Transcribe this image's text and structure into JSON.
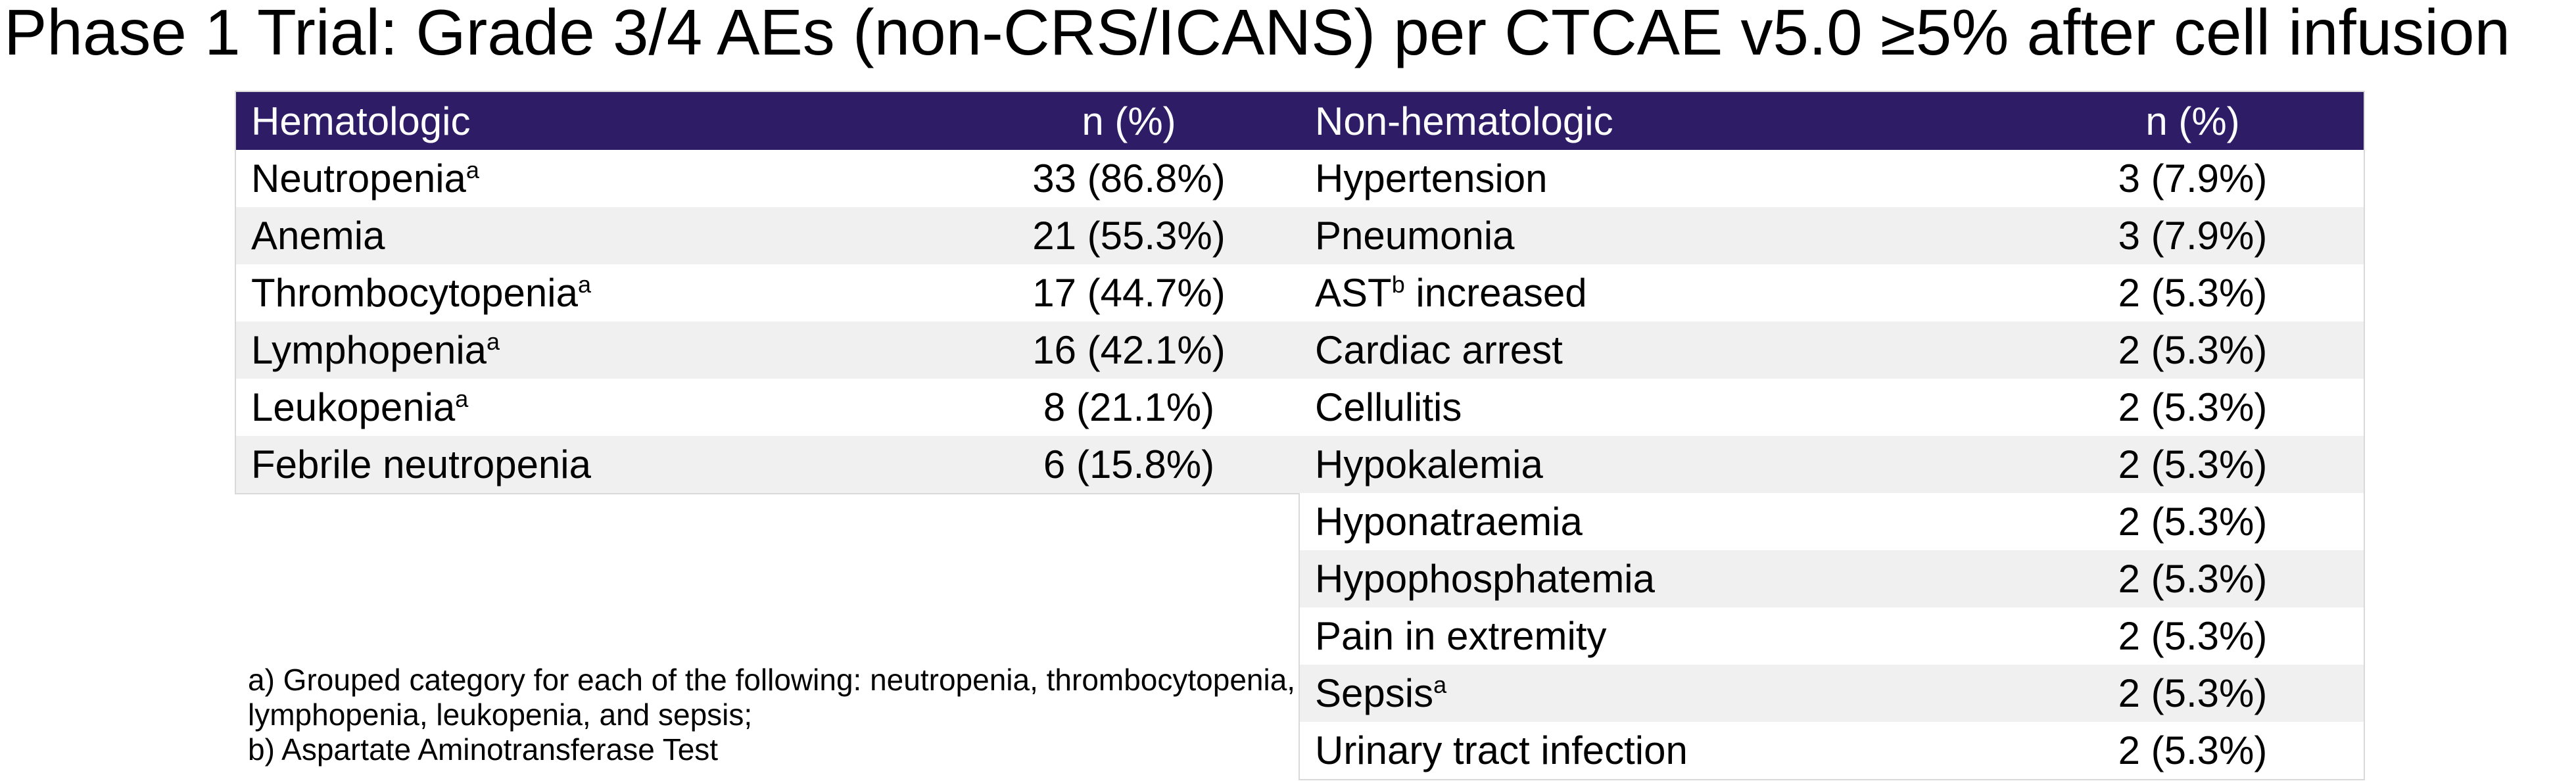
{
  "chart_data": {
    "type": "table",
    "title": "Phase 1 Trial: Grade 3/4 AEs (non-CRS/ICANS) per CTCAE v5.0 ≥5% after cell infusion",
    "tables": [
      {
        "name": "Hematologic",
        "columns": [
          "Hematologic",
          "n (%)"
        ],
        "rows": [
          {
            "label": "Neutropenia",
            "sup": "a",
            "after": "",
            "value": "33 (86.8%)"
          },
          {
            "label": "Anemia",
            "sup": "",
            "after": "",
            "value": "21 (55.3%)"
          },
          {
            "label": "Thrombocytopenia",
            "sup": "a",
            "after": "",
            "value": "17 (44.7%)"
          },
          {
            "label": "Lymphopenia",
            "sup": "a",
            "after": "",
            "value": "16 (42.1%)"
          },
          {
            "label": "Leukopenia",
            "sup": "a",
            "after": "",
            "value": "8 (21.1%)"
          },
          {
            "label": "Febrile neutropenia",
            "sup": "",
            "after": "",
            "value": "6 (15.8%)"
          }
        ]
      },
      {
        "name": "Non-hematologic",
        "columns": [
          "Non-hematologic",
          "n (%)"
        ],
        "rows": [
          {
            "label": "Hypertension",
            "sup": "",
            "after": "",
            "value": "3 (7.9%)"
          },
          {
            "label": "Pneumonia",
            "sup": "",
            "after": "",
            "value": "3 (7.9%)"
          },
          {
            "label": "AST",
            "sup": "b",
            "after": " increased",
            "value": "2 (5.3%)"
          },
          {
            "label": "Cardiac arrest",
            "sup": "",
            "after": "",
            "value": "2 (5.3%)"
          },
          {
            "label": "Cellulitis",
            "sup": "",
            "after": "",
            "value": "2 (5.3%)"
          },
          {
            "label": "Hypokalemia",
            "sup": "",
            "after": "",
            "value": "2 (5.3%)"
          },
          {
            "label": "Hyponatraemia",
            "sup": "",
            "after": "",
            "value": "2 (5.3%)"
          },
          {
            "label": "Hypophosphatemia",
            "sup": "",
            "after": "",
            "value": "2 (5.3%)"
          },
          {
            "label": "Pain in extremity",
            "sup": "",
            "after": "",
            "value": "2 (5.3%)"
          },
          {
            "label": "Sepsis",
            "sup": "a",
            "after": "",
            "value": "2 (5.3%)"
          },
          {
            "label": "Urinary tract infection",
            "sup": "",
            "after": "",
            "value": "2 (5.3%)"
          }
        ]
      }
    ],
    "footnotes": [
      "a) Grouped category for each of the following: neutropenia, thrombocytopenia,",
      "lymphopenia, leukopenia, and sepsis;",
      "b) Aspartate Aminotransferase Test"
    ]
  },
  "colors": {
    "header_bg": "#2E1C66",
    "header_text": "#FFFFFF",
    "row_bg": "#FFFFFF",
    "row_alt_bg": "#F0F0F0",
    "table_border": "#D9D9D9",
    "text": "#000000",
    "background": "#FFFFFF"
  }
}
